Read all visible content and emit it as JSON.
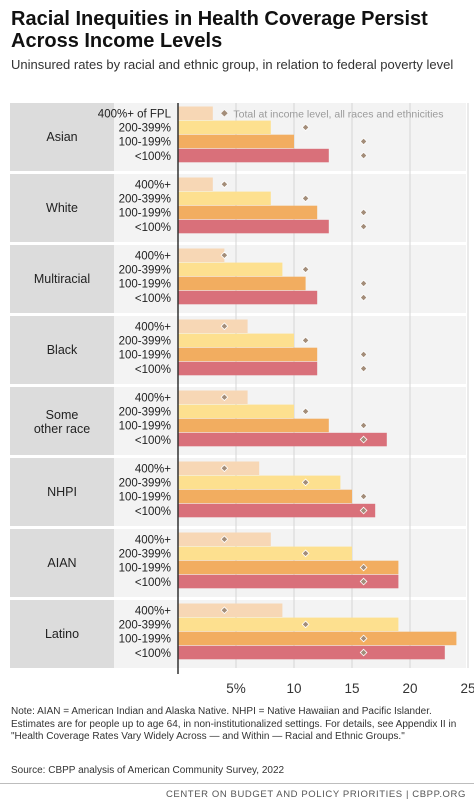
{
  "header": {
    "title": "Racial Inequities in Health Coverage Persist Across Income Levels",
    "subtitle": "Uninsured rates by racial and ethnic group, in relation to federal poverty level"
  },
  "notes": {
    "note": "Note: AIAN = American Indian and Alaska Native. NHPI = Native Hawaiian and Pacific Islander. Estimates are for people up to age 64, in non-institutionalized settings. For details, see Appendix II in \"Health Coverage Rates Vary Widely Across — and Within — Racial and Ethnic Groups.\"",
    "source": "Source: CBPP analysis of American Community Survey, 2022",
    "footer": "CENTER ON BUDGET AND POLICY PRIORITIES | CBPP.ORG"
  },
  "chart_data": {
    "type": "bar",
    "orientation": "horizontal",
    "title": "Racial Inequities in Health Coverage Persist Across Income Levels",
    "subtitle": "Uninsured rates by racial and ethnic group, in relation to federal poverty level",
    "xlim": [
      0,
      25
    ],
    "x_ticks": [
      "5%",
      "10",
      "15",
      "20",
      "25"
    ],
    "x_tick_values": [
      5,
      10,
      15,
      20,
      25
    ],
    "grid": true,
    "marker_legend": "Total at income level, all races and ethnicities",
    "income_colors": [
      "#f7d7b5",
      "#fde08f",
      "#f2ad60",
      "#d9707a"
    ],
    "marker_color": "#a38d79",
    "totals": [
      4,
      11,
      16,
      16
    ],
    "groups": [
      {
        "name": "Asian",
        "labels": [
          "400%+ of FPL",
          "200-399%",
          "100-199%",
          "<100%"
        ],
        "values": [
          3,
          8,
          10,
          13
        ]
      },
      {
        "name": "White",
        "labels": [
          "400%+",
          "200-399%",
          "100-199%",
          "<100%"
        ],
        "values": [
          3,
          8,
          12,
          13
        ]
      },
      {
        "name": "Multiracial",
        "labels": [
          "400%+",
          "200-399%",
          "100-199%",
          "<100%"
        ],
        "values": [
          4,
          9,
          11,
          12
        ]
      },
      {
        "name": "Black",
        "labels": [
          "400%+",
          "200-399%",
          "100-199%",
          "<100%"
        ],
        "values": [
          6,
          10,
          12,
          12
        ]
      },
      {
        "name": "Some other race",
        "labels": [
          "400%+",
          "200-399%",
          "100-199%",
          "<100%"
        ],
        "values": [
          6,
          10,
          13,
          18
        ]
      },
      {
        "name": "NHPI",
        "labels": [
          "400%+",
          "200-399%",
          "100-199%",
          "<100%"
        ],
        "values": [
          7,
          14,
          15,
          17
        ]
      },
      {
        "name": "AIAN",
        "labels": [
          "400%+",
          "200-399%",
          "100-199%",
          "<100%"
        ],
        "values": [
          8,
          15,
          19,
          19
        ]
      },
      {
        "name": "Latino",
        "labels": [
          "400%+",
          "200-399%",
          "100-199%",
          "<100%"
        ],
        "values": [
          9,
          19,
          24,
          23
        ]
      }
    ]
  }
}
